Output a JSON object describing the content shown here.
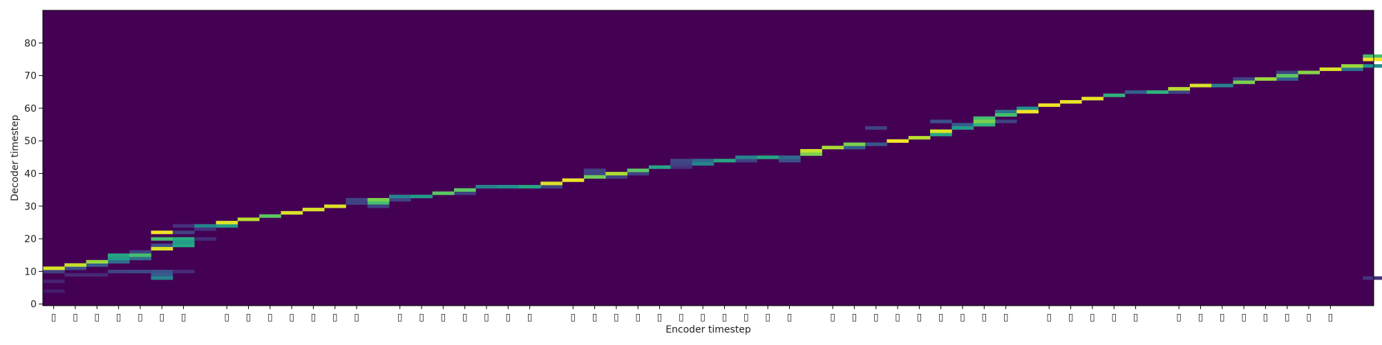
{
  "chart_data": {
    "type": "heatmap",
    "title": "",
    "xlabel": "Encoder timestep",
    "ylabel": "Decoder timestep",
    "ylim": [
      0,
      90
    ],
    "y_ticks": [
      0,
      10,
      20,
      30,
      40,
      50,
      60,
      70,
      80
    ],
    "x_tick_glyph": "▯",
    "encoder_steps": 60,
    "glyph_positions": [
      0,
      1,
      2,
      3,
      4,
      5,
      6,
      8,
      9,
      10,
      11,
      12,
      13,
      14,
      16,
      17,
      18,
      19,
      20,
      21,
      22,
      24,
      25,
      26,
      27,
      28,
      29,
      30,
      31,
      32,
      33,
      34,
      36,
      37,
      38,
      39,
      40,
      41,
      42,
      43,
      44,
      46,
      47,
      48,
      49,
      50,
      52,
      53,
      54,
      55,
      56,
      57,
      58,
      59
    ],
    "colormap": "viridis",
    "colors": {
      "background": "#440154",
      "peak": "#fde725"
    },
    "primary_alignment": [
      [
        0,
        11,
        0.95
      ],
      [
        1,
        12,
        0.92
      ],
      [
        2,
        13,
        0.85
      ],
      [
        3,
        14,
        0.55
      ],
      [
        4,
        15,
        0.7
      ],
      [
        5,
        17,
        0.95
      ],
      [
        6,
        19,
        0.55
      ],
      [
        7,
        24,
        0.45
      ],
      [
        8,
        25,
        0.95
      ],
      [
        9,
        26,
        0.9
      ],
      [
        10,
        27,
        0.75
      ],
      [
        11,
        28,
        0.95
      ],
      [
        12,
        29,
        0.95
      ],
      [
        13,
        30,
        0.95
      ],
      [
        14,
        31,
        0.2
      ],
      [
        15,
        32,
        0.8
      ],
      [
        16,
        33,
        0.45
      ],
      [
        17,
        33,
        0.55
      ],
      [
        18,
        34,
        0.75
      ],
      [
        19,
        35,
        0.75
      ],
      [
        20,
        36,
        0.45
      ],
      [
        21,
        36,
        0.5
      ],
      [
        22,
        36,
        0.6
      ],
      [
        23,
        37,
        0.95
      ],
      [
        24,
        38,
        0.98
      ],
      [
        25,
        39,
        0.78
      ],
      [
        26,
        40,
        0.88
      ],
      [
        27,
        41,
        0.75
      ],
      [
        28,
        42,
        0.6
      ],
      [
        29,
        43,
        0.2
      ],
      [
        30,
        43,
        0.45
      ],
      [
        31,
        44,
        0.6
      ],
      [
        32,
        45,
        0.45
      ],
      [
        33,
        45,
        0.6
      ],
      [
        34,
        45,
        0.35
      ],
      [
        35,
        47,
        0.92
      ],
      [
        36,
        48,
        0.88
      ],
      [
        37,
        49,
        0.8
      ],
      [
        38,
        49,
        0.28
      ],
      [
        39,
        50,
        0.98
      ],
      [
        40,
        51,
        0.9
      ],
      [
        41,
        53,
        0.95
      ],
      [
        42,
        54,
        0.55
      ],
      [
        43,
        56,
        0.8
      ],
      [
        44,
        58,
        0.7
      ],
      [
        45,
        59,
        0.98
      ],
      [
        46,
        61,
        0.98
      ],
      [
        47,
        62,
        0.97
      ],
      [
        48,
        63,
        0.97
      ],
      [
        49,
        64,
        0.65
      ],
      [
        50,
        65,
        0.3
      ],
      [
        51,
        65,
        0.65
      ],
      [
        52,
        66,
        0.9
      ],
      [
        53,
        67,
        0.95
      ],
      [
        54,
        67,
        0.45
      ],
      [
        55,
        68,
        0.8
      ],
      [
        56,
        69,
        0.85
      ],
      [
        57,
        70,
        0.75
      ],
      [
        58,
        71,
        0.82
      ],
      [
        59,
        72,
        0.95
      ],
      [
        60,
        73,
        0.85
      ],
      [
        61,
        75,
        0.98
      ]
    ],
    "extra_cells": [
      [
        0,
        10,
        0.2
      ],
      [
        0,
        7,
        0.1
      ],
      [
        0,
        4,
        0.08
      ],
      [
        1,
        11,
        0.25
      ],
      [
        1,
        9,
        0.12
      ],
      [
        2,
        12,
        0.3
      ],
      [
        2,
        9,
        0.12
      ],
      [
        3,
        15,
        0.6
      ],
      [
        3,
        13,
        0.35
      ],
      [
        3,
        10,
        0.2
      ],
      [
        4,
        14,
        0.35
      ],
      [
        4,
        10,
        0.22
      ],
      [
        4,
        16,
        0.2
      ],
      [
        5,
        22,
        0.98
      ],
      [
        5,
        20,
        0.7
      ],
      [
        5,
        18,
        0.25
      ],
      [
        5,
        10,
        0.25
      ],
      [
        5,
        9,
        0.3
      ],
      [
        5,
        8,
        0.45
      ],
      [
        6,
        20,
        0.62
      ],
      [
        6,
        18,
        0.6
      ],
      [
        6,
        22,
        0.2
      ],
      [
        6,
        24,
        0.15
      ],
      [
        6,
        10,
        0.12
      ],
      [
        7,
        23,
        0.15
      ],
      [
        7,
        20,
        0.12
      ],
      [
        8,
        24,
        0.55
      ],
      [
        14,
        32,
        0.2
      ],
      [
        15,
        31,
        0.7
      ],
      [
        15,
        30,
        0.2
      ],
      [
        16,
        32,
        0.2
      ],
      [
        19,
        34,
        0.2
      ],
      [
        23,
        36,
        0.2
      ],
      [
        25,
        40,
        0.2
      ],
      [
        25,
        41,
        0.2
      ],
      [
        26,
        39,
        0.2
      ],
      [
        27,
        40,
        0.2
      ],
      [
        29,
        44,
        0.22
      ],
      [
        29,
        42,
        0.15
      ],
      [
        30,
        44,
        0.35
      ],
      [
        32,
        44,
        0.2
      ],
      [
        34,
        44,
        0.25
      ],
      [
        35,
        46,
        0.8
      ],
      [
        37,
        48,
        0.3
      ],
      [
        38,
        54,
        0.2
      ],
      [
        41,
        52,
        0.6
      ],
      [
        41,
        56,
        0.25
      ],
      [
        42,
        55,
        0.3
      ],
      [
        43,
        55,
        0.65
      ],
      [
        43,
        57,
        0.7
      ],
      [
        44,
        59,
        0.4
      ],
      [
        44,
        56,
        0.2
      ],
      [
        45,
        60,
        0.5
      ],
      [
        52,
        65,
        0.2
      ],
      [
        55,
        69,
        0.2
      ],
      [
        57,
        69,
        0.3
      ],
      [
        57,
        71,
        0.2
      ],
      [
        60,
        72,
        0.4
      ],
      [
        61,
        76,
        0.7
      ],
      [
        61,
        73,
        0.5
      ],
      [
        61,
        8,
        0.15
      ]
    ]
  },
  "axes": {
    "xlabel": "Encoder timestep",
    "ylabel": "Decoder timestep"
  }
}
